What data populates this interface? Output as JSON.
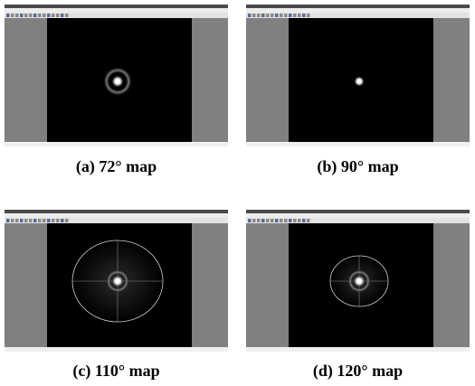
{
  "figure": {
    "panels": [
      {
        "caption": "(a)  72°  map"
      },
      {
        "caption": "(b)  90°  map"
      },
      {
        "caption": "(c)  110°  map"
      },
      {
        "caption": "(d)  120°  map"
      }
    ]
  }
}
